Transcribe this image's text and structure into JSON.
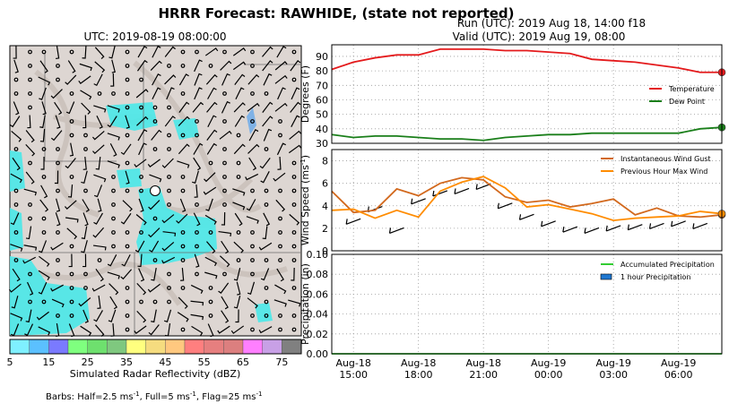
{
  "figure": {
    "title": "HRRR Forecast: RAWHIDE, (state not reported)",
    "run": "Run (UTC): 2019 Aug 18, 14:00 f18",
    "valid": "Valid (UTC): 2019 Aug 19, 08:00",
    "map_title": "UTC: 2019-08-19 08:00:00",
    "colorbar_label": "Simulated Radar Reflectivity (dBZ)",
    "colorbar_ticks": [
      "5",
      "15",
      "25",
      "35",
      "45",
      "55",
      "65",
      "75"
    ],
    "colorbar_colors": [
      "#7ff0ff",
      "#5bc0ff",
      "#7a7aff",
      "#7fff7f",
      "#6ee06e",
      "#7fc87f",
      "#ffff7f",
      "#f5dc7f",
      "#ffc87f",
      "#ff7f7f",
      "#e67f7f",
      "#dc7f7f",
      "#ff7fff",
      "#c8a0e6",
      "#808080"
    ],
    "barbs_note_prefix": "Barbs: Half=2.5 ms",
    "barbs_note_mid": ", Full=5 ms",
    "barbs_note_end": ", Flag=25 ms",
    "barbs_note_sup": "-1"
  },
  "chart_data": [
    {
      "type": "line",
      "ylabel": "Degrees (F)",
      "ylim": [
        30,
        98
      ],
      "yticks": [
        "30",
        "40",
        "50",
        "60",
        "70",
        "80",
        "90"
      ],
      "grid": true,
      "legend": "right",
      "x": [
        "2019-08-18 14:00",
        "2019-08-18 15:00",
        "2019-08-18 16:00",
        "2019-08-18 17:00",
        "2019-08-18 18:00",
        "2019-08-18 19:00",
        "2019-08-18 20:00",
        "2019-08-18 21:00",
        "2019-08-18 22:00",
        "2019-08-18 23:00",
        "2019-08-19 00:00",
        "2019-08-19 01:00",
        "2019-08-19 02:00",
        "2019-08-19 03:00",
        "2019-08-19 04:00",
        "2019-08-19 05:00",
        "2019-08-19 06:00",
        "2019-08-19 07:00",
        "2019-08-19 08:00"
      ],
      "series": [
        {
          "name": "Temperature",
          "color": "#e41a1c",
          "values": [
            81,
            86,
            89,
            91,
            91,
            95,
            95,
            95,
            94,
            94,
            93,
            92,
            88,
            87,
            86,
            84,
            82,
            79,
            79
          ]
        },
        {
          "name": "Dew Point",
          "color": "#1a7f1a",
          "values": [
            36,
            34,
            35,
            35,
            34,
            33,
            33,
            32,
            34,
            35,
            36,
            36,
            37,
            37,
            37,
            37,
            37,
            40,
            41
          ]
        }
      ]
    },
    {
      "type": "line",
      "ylabel": "Wind Speed (ms",
      "ylabel_sup": "-1",
      "ylabel_end": ")",
      "ylim": [
        0,
        9
      ],
      "yticks": [
        "0",
        "2",
        "4",
        "6",
        "8"
      ],
      "grid": true,
      "legend": "top-right",
      "x": [
        "2019-08-18 14:00",
        "2019-08-18 15:00",
        "2019-08-18 16:00",
        "2019-08-18 17:00",
        "2019-08-18 18:00",
        "2019-08-18 19:00",
        "2019-08-18 20:00",
        "2019-08-18 21:00",
        "2019-08-18 22:00",
        "2019-08-18 23:00",
        "2019-08-19 00:00",
        "2019-08-19 01:00",
        "2019-08-19 02:00",
        "2019-08-19 03:00",
        "2019-08-19 04:00",
        "2019-08-19 05:00",
        "2019-08-19 06:00",
        "2019-08-19 07:00",
        "2019-08-19 08:00"
      ],
      "series": [
        {
          "name": "Instantaneous Wind Gust",
          "color": "#d2691e",
          "values": [
            5.3,
            3.4,
            3.6,
            5.5,
            4.9,
            6.0,
            6.5,
            6.3,
            4.8,
            4.3,
            4.5,
            3.9,
            4.2,
            4.6,
            3.2,
            3.8,
            3.1,
            3.0,
            3.2
          ]
        },
        {
          "name": "Previous Hour Max Wind",
          "color": "#ff8c00",
          "values": [
            3.6,
            3.7,
            2.9,
            3.6,
            3.0,
            5.3,
            6.1,
            6.6,
            5.6,
            3.9,
            4.1,
            3.7,
            3.3,
            2.7,
            2.9,
            3.0,
            3.1,
            3.5,
            3.3
          ]
        }
      ]
    },
    {
      "type": "line",
      "ylabel": "Precipitation (in)",
      "ylim": [
        0,
        0.1
      ],
      "yticks": [
        "0.00",
        "0.02",
        "0.04",
        "0.06",
        "0.08",
        "0.10"
      ],
      "grid": true,
      "legend": "top-right",
      "xticks": [
        [
          "Aug-18",
          "15:00"
        ],
        [
          "Aug-18",
          "18:00"
        ],
        [
          "Aug-18",
          "21:00"
        ],
        [
          "Aug-19",
          "00:00"
        ],
        [
          "Aug-19",
          "03:00"
        ],
        [
          "Aug-19",
          "06:00"
        ]
      ],
      "x": [
        "2019-08-18 14:00",
        "2019-08-18 15:00",
        "2019-08-18 16:00",
        "2019-08-18 17:00",
        "2019-08-18 18:00",
        "2019-08-18 19:00",
        "2019-08-18 20:00",
        "2019-08-18 21:00",
        "2019-08-18 22:00",
        "2019-08-18 23:00",
        "2019-08-19 00:00",
        "2019-08-19 01:00",
        "2019-08-19 02:00",
        "2019-08-19 03:00",
        "2019-08-19 04:00",
        "2019-08-19 05:00",
        "2019-08-19 06:00",
        "2019-08-19 07:00",
        "2019-08-19 08:00"
      ],
      "series": [
        {
          "name": "Accumulated Precipitation",
          "color": "#33cc33",
          "values": [
            0,
            0,
            0,
            0,
            0,
            0,
            0,
            0,
            0,
            0,
            0,
            0,
            0,
            0,
            0,
            0,
            0,
            0,
            0
          ]
        },
        {
          "name": "1 hour Precipitation",
          "color": "#1f78d1",
          "values": [
            0,
            0,
            0,
            0,
            0,
            0,
            0,
            0,
            0,
            0,
            0,
            0,
            0,
            0,
            0,
            0,
            0,
            0,
            0
          ]
        }
      ]
    }
  ]
}
